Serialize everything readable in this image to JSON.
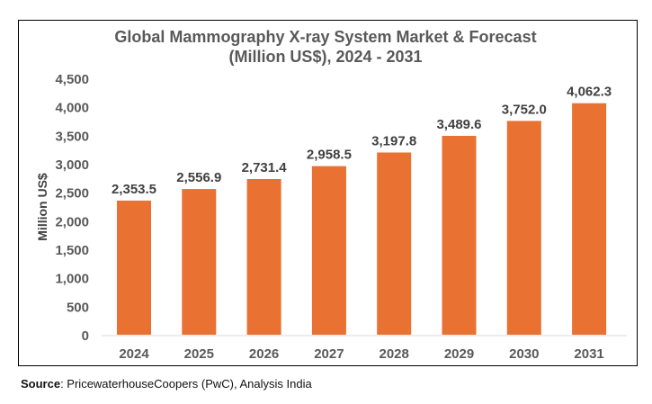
{
  "chart_data": {
    "type": "bar",
    "title": "Global Mammography X-ray System Market & Forecast",
    "subtitle": "(Million US$), 2024 - 2031",
    "xlabel": "",
    "ylabel": "Million US$",
    "categories": [
      "2024",
      "2025",
      "2026",
      "2027",
      "2028",
      "2029",
      "2030",
      "2031"
    ],
    "values": [
      2353.5,
      2556.9,
      2731.4,
      2958.5,
      3197.8,
      3489.6,
      3752.0,
      4062.3
    ],
    "data_labels": [
      "2,353.5",
      "2,556.9",
      "2,731.4",
      "2,958.5",
      "3,197.8",
      "3,489.6",
      "3,752.0",
      "4,062.3"
    ],
    "ylim": [
      0,
      4500
    ],
    "yticks": [
      "0",
      "500",
      "1,000",
      "1,500",
      "2,000",
      "2,500",
      "3,000",
      "3,500",
      "4,000",
      "4,500"
    ],
    "grid": false,
    "legend": "none",
    "bar_color": "#E97132"
  },
  "source": {
    "label": "Source",
    "text": ": PricewaterhouseCoopers (PwC), Analysis India"
  }
}
